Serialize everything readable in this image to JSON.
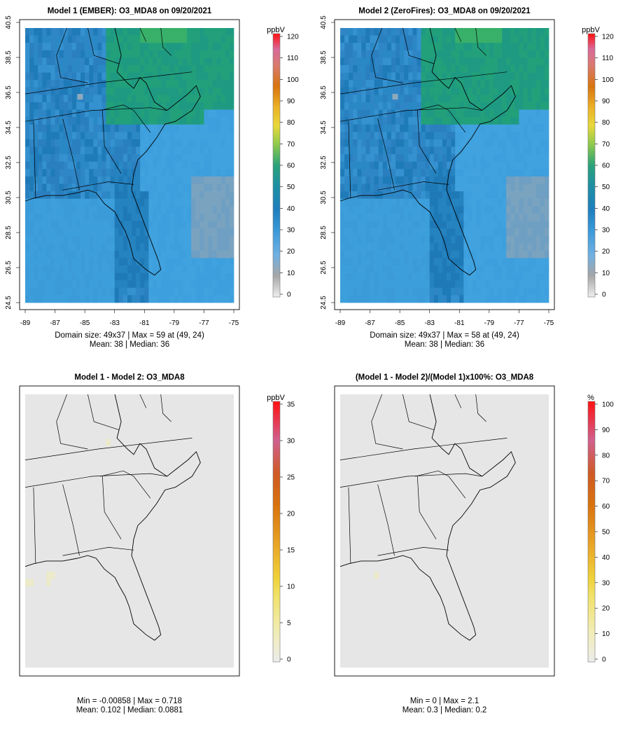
{
  "panels": [
    {
      "title": "Model 1 (EMBER): O3_MDA8 on 09/20/2021",
      "show_axes": true,
      "stats_line1": "Domain size: 49x37 | Max = 59 at (49, 24)",
      "stats_line2": "Mean: 38 |  Median: 36",
      "colorbar": {
        "unit": "ppbV",
        "ticks": [
          "0",
          "10",
          "20",
          "30",
          "40",
          "50",
          "60",
          "70",
          "80",
          "90",
          "100",
          "110",
          "120"
        ],
        "max": 120
      }
    },
    {
      "title": "Model 2 (ZeroFires): O3_MDA8 on 09/20/2021",
      "show_axes": true,
      "stats_line1": "Domain size: 49x37 | Max = 58 at (49, 24)",
      "stats_line2": "Mean: 38 |  Median: 36",
      "colorbar": {
        "unit": "ppbV",
        "ticks": [
          "0",
          "10",
          "20",
          "30",
          "40",
          "50",
          "60",
          "70",
          "80",
          "90",
          "100",
          "110",
          "120"
        ],
        "max": 120
      }
    },
    {
      "title": "Model 1 - Model 2: O3_MDA8",
      "show_axes": false,
      "stats_line1": "Min = -0.00858 | Max = 0.718",
      "stats_line2": "Mean: 0.102 |  Median: 0.0881",
      "colorbar": {
        "unit": "ppbV",
        "ticks": [
          "0",
          "5",
          "10",
          "15",
          "20",
          "25",
          "30",
          "35"
        ],
        "max": 35
      }
    },
    {
      "title": "(Model 1 - Model 2)/(Model 1)x100%: O3_MDA8",
      "show_axes": false,
      "stats_line1": "Min = 0 | Max = 2.1",
      "stats_line2": "Mean: 0.3 |  Median: 0.2",
      "colorbar": {
        "unit": "%",
        "ticks": [
          "0",
          "10",
          "20",
          "30",
          "40",
          "50",
          "60",
          "70",
          "80",
          "90",
          "100"
        ],
        "max": 100
      }
    }
  ],
  "map_axes": {
    "lon_ticks": [
      "-89",
      "-87",
      "-85",
      "-83",
      "-81",
      "-79",
      "-77",
      "-75"
    ],
    "lat_ticks": [
      "24.5",
      "26.5",
      "28.5",
      "30.5",
      "32.5",
      "34.5",
      "36.5",
      "38.5",
      "40.5"
    ]
  },
  "colors": {
    "map_background_difference": "#e6e6e6",
    "ocean_blue": "#3b9ad9",
    "land_blue": "#2f86c6",
    "ozone_green": "#1f9a7a"
  }
}
